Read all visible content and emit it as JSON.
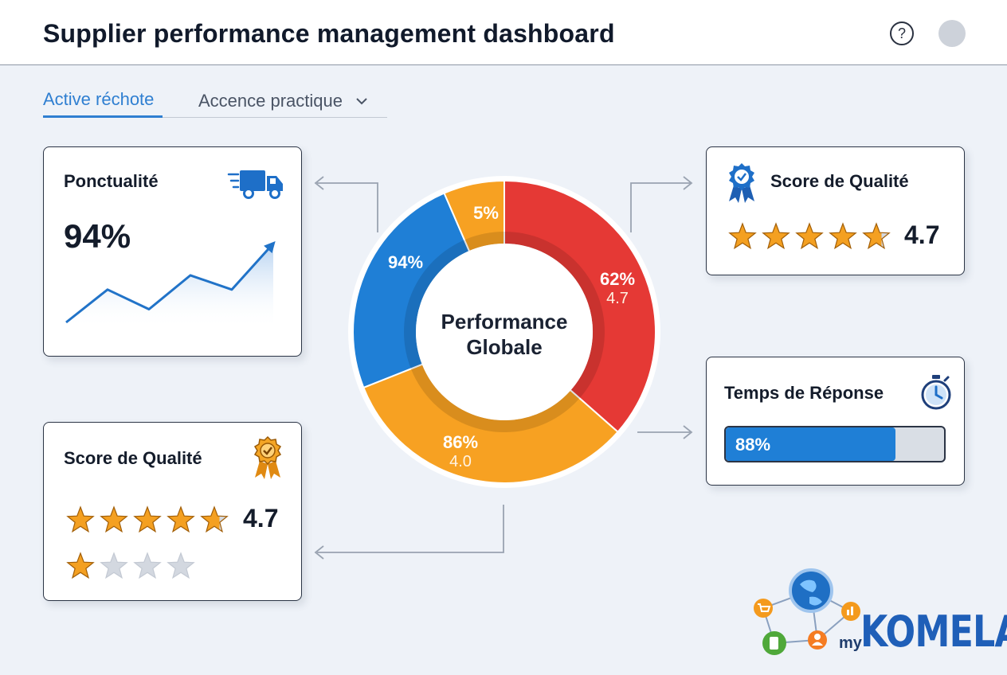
{
  "header": {
    "title": "Supplier performance management dashboard",
    "help_icon": "?"
  },
  "tabs": {
    "active_label": "Active réchote",
    "select_label": "Accence practique",
    "select_chevron": "⌄"
  },
  "punctuality": {
    "title": "Ponctualité",
    "value": "94%",
    "icon": "truck-icon",
    "trend": [
      0,
      30,
      12,
      43,
      30,
      72
    ]
  },
  "quality_right": {
    "title": "Score de Qualité",
    "icon": "award-ribbon-icon",
    "rating": 4.7,
    "rating_label": "4.7"
  },
  "quality_left": {
    "title": "Score de Qualité",
    "icon": "award-medal-icon",
    "rating": 4.7,
    "rating_label": "4.7",
    "second_row_rating": 1
  },
  "response_time": {
    "title": "Temps de Réponse",
    "icon": "stopwatch-icon",
    "progress": 0.88,
    "progress_label": "88%"
  },
  "donut": {
    "center_line1": "Performance",
    "center_line2": "Globale",
    "segments": [
      {
        "label": "62%",
        "sub": "4.7",
        "color": "#e53935",
        "share": 0.365
      },
      {
        "label": "86%",
        "sub": "4.0",
        "color": "#f7a122",
        "share": 0.325
      },
      {
        "label": "94%",
        "sub": "",
        "color": "#1f7fd6",
        "share": 0.245
      },
      {
        "label": "5%",
        "sub": "",
        "color": "#f7a122",
        "share": 0.065
      }
    ]
  },
  "logo": {
    "prefix": "my",
    "name": "KOMELA"
  }
}
